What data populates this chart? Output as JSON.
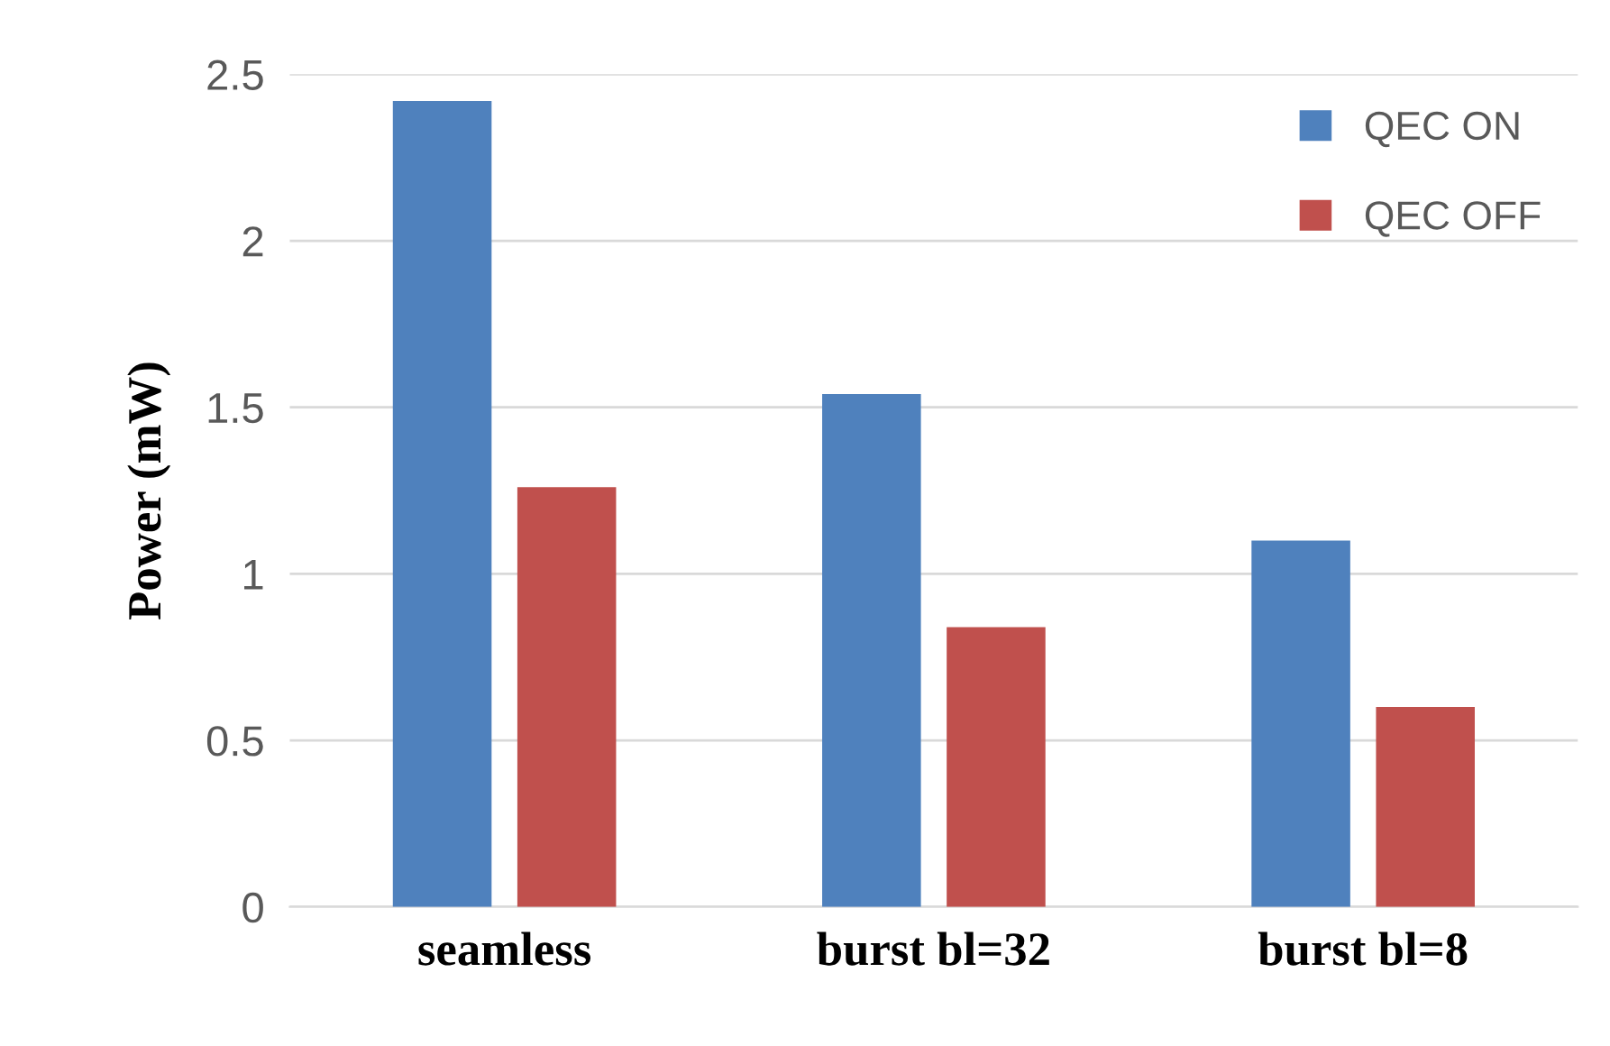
{
  "chart_data": {
    "type": "bar",
    "ylabel": "Power (mW)",
    "categories": [
      "seamless",
      "burst bl=32",
      "burst bl=8"
    ],
    "series": [
      {
        "name": "QEC ON",
        "color": "#4f81bd",
        "values": [
          2.42,
          1.54,
          1.1
        ]
      },
      {
        "name": "QEC OFF",
        "color": "#c0504d",
        "values": [
          1.26,
          0.84,
          0.6
        ]
      }
    ],
    "ylim": [
      0,
      2.5
    ],
    "yticks": [
      0,
      0.5,
      1,
      1.5,
      2,
      2.5
    ],
    "grid": "y",
    "legend": "top right"
  }
}
